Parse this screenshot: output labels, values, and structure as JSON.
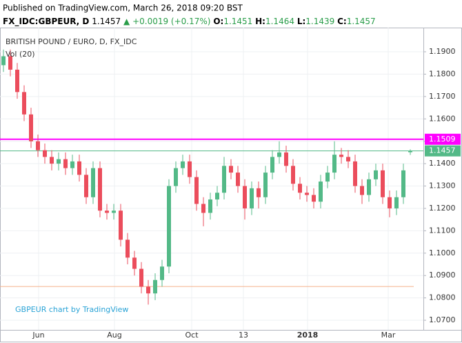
{
  "header": {
    "published": "Published on TradingView.com, March 26, 2018 09:20 BST",
    "symbol": "FX_IDC:GBPEUR, D",
    "last": "1.1457",
    "change": "▲ +0.0019 (+0.17%)",
    "o_label": "O:",
    "o": "1.1451",
    "h_label": "H:",
    "h": "1.1464",
    "l_label": "L:",
    "l": "1.1439",
    "c_label": "C:",
    "c": "1.1457"
  },
  "chart_data": {
    "type": "candlestick",
    "legend": "BRITISH POUND / EURO, D, FX_IDC",
    "indicator": "Vol (20)",
    "watermark": "GBPEUR chart by TradingView",
    "up_color": "#53b987",
    "down_color": "#eb4d5c",
    "grid": true,
    "open": [
      1.184,
      1.188,
      1.182,
      1.172,
      1.162,
      1.15,
      1.146,
      1.143,
      1.14,
      1.142,
      1.138,
      1.141,
      1.135,
      1.125,
      1.138,
      1.119,
      1.118,
      1.119,
      1.106,
      1.098,
      1.093,
      1.085,
      1.082,
      1.088,
      1.094,
      1.13,
      1.138,
      1.141,
      1.134,
      1.122,
      1.118,
      1.124,
      1.127,
      1.139,
      1.136,
      1.13,
      1.12,
      1.129,
      1.125,
      1.136,
      1.143,
      1.145,
      1.139,
      1.131,
      1.127,
      1.126,
      1.123,
      1.132,
      1.136,
      1.144,
      1.143,
      1.141,
      1.13,
      1.126,
      1.133,
      1.137,
      1.125,
      1.12,
      1.125,
      1.1451
    ],
    "high": [
      1.191,
      1.191,
      1.185,
      1.175,
      1.165,
      1.153,
      1.149,
      1.146,
      1.145,
      1.145,
      1.144,
      1.144,
      1.138,
      1.141,
      1.141,
      1.122,
      1.122,
      1.122,
      1.109,
      1.101,
      1.096,
      1.088,
      1.091,
      1.097,
      1.133,
      1.141,
      1.144,
      1.144,
      1.137,
      1.125,
      1.127,
      1.13,
      1.143,
      1.142,
      1.139,
      1.133,
      1.132,
      1.132,
      1.139,
      1.146,
      1.15,
      1.148,
      1.142,
      1.134,
      1.13,
      1.129,
      1.135,
      1.139,
      1.15,
      1.147,
      1.146,
      1.144,
      1.133,
      1.136,
      1.14,
      1.14,
      1.128,
      1.128,
      1.14,
      1.1464
    ],
    "low": [
      1.181,
      1.179,
      1.169,
      1.159,
      1.147,
      1.143,
      1.14,
      1.137,
      1.137,
      1.135,
      1.135,
      1.132,
      1.122,
      1.122,
      1.116,
      1.115,
      1.115,
      1.103,
      1.095,
      1.09,
      1.082,
      1.077,
      1.079,
      1.085,
      1.091,
      1.127,
      1.135,
      1.131,
      1.119,
      1.112,
      1.115,
      1.121,
      1.124,
      1.133,
      1.127,
      1.115,
      1.117,
      1.12,
      1.122,
      1.133,
      1.14,
      1.136,
      1.128,
      1.124,
      1.123,
      1.12,
      1.12,
      1.129,
      1.133,
      1.14,
      1.138,
      1.127,
      1.122,
      1.123,
      1.13,
      1.122,
      1.116,
      1.117,
      1.122,
      1.1439
    ],
    "close": [
      1.188,
      1.182,
      1.172,
      1.162,
      1.15,
      1.146,
      1.143,
      1.14,
      1.142,
      1.138,
      1.141,
      1.135,
      1.125,
      1.138,
      1.119,
      1.118,
      1.119,
      1.106,
      1.098,
      1.093,
      1.085,
      1.082,
      1.088,
      1.094,
      1.13,
      1.138,
      1.141,
      1.134,
      1.122,
      1.118,
      1.124,
      1.127,
      1.139,
      1.136,
      1.13,
      1.12,
      1.129,
      1.125,
      1.136,
      1.143,
      1.145,
      1.139,
      1.131,
      1.127,
      1.126,
      1.123,
      1.132,
      1.136,
      1.144,
      1.143,
      1.141,
      1.13,
      1.126,
      1.133,
      1.137,
      1.125,
      1.12,
      1.125,
      1.137,
      1.1457
    ],
    "ylim": [
      1.0657,
      1.2008
    ],
    "yticks": [
      {
        "value": 1.07,
        "label": "1.0700"
      },
      {
        "value": 1.08,
        "label": "1.0800"
      },
      {
        "value": 1.09,
        "label": "1.0900"
      },
      {
        "value": 1.1,
        "label": "1.1000"
      },
      {
        "value": 1.11,
        "label": "1.1100"
      },
      {
        "value": 1.12,
        "label": "1.1200"
      },
      {
        "value": 1.13,
        "label": "1.1300"
      },
      {
        "value": 1.14,
        "label": "1.1400"
      },
      {
        "value": 1.15,
        "label": "1.1500"
      },
      {
        "value": 1.16,
        "label": "1.1600"
      },
      {
        "value": 1.17,
        "label": "1.1700"
      },
      {
        "value": 1.18,
        "label": "1.1800"
      },
      {
        "value": 1.19,
        "label": "1.1900"
      }
    ],
    "xticks": [
      {
        "value": 5.1,
        "label": "Jun"
      },
      {
        "value": 16.1,
        "label": "Aug"
      },
      {
        "value": 27.3,
        "label": "Oct"
      },
      {
        "value": 34.8,
        "label": "13"
      },
      {
        "value": 44.1,
        "label": "2018"
      },
      {
        "value": 55.8,
        "label": "Mar"
      }
    ],
    "hlines": [
      {
        "value": 1.1509,
        "color": "#ff00ff"
      },
      {
        "value": 1.1457,
        "color": "#53b987"
      },
      {
        "value": 1.0851,
        "color": "#f5b08a"
      }
    ]
  }
}
